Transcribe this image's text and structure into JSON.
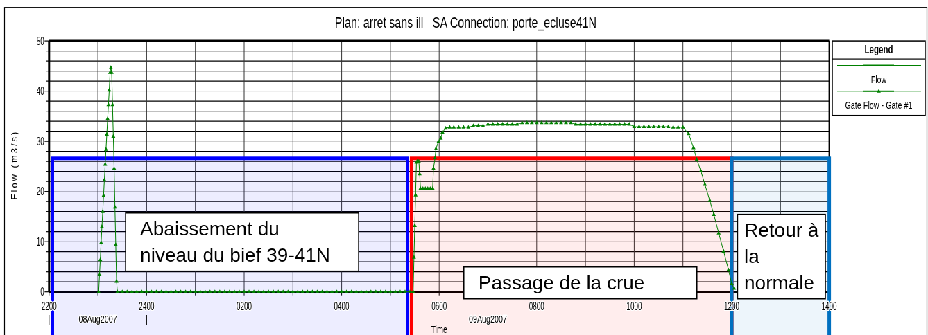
{
  "chart_data": {
    "type": "line",
    "title": "Plan: arret sans ill   SA Connection: porte_ecluse41N",
    "xlabel": "Time",
    "ylabel": "Flow (m3/s)",
    "legend_title": "Legend",
    "legend": "top right",
    "grid": true,
    "xlim": [
      "2007-08-08T22:00",
      "2007-08-09T14:00"
    ],
    "xticks": [
      {
        "value": "2007-08-08T22:00",
        "label": "2200"
      },
      {
        "value": "2007-08-08T23:00",
        "label": null
      },
      {
        "value": "2007-08-09T00:00",
        "label": "2400"
      },
      {
        "value": "2007-08-09T01:00",
        "label": null
      },
      {
        "value": "2007-08-09T02:00",
        "label": "0200"
      },
      {
        "value": "2007-08-09T03:00",
        "label": null
      },
      {
        "value": "2007-08-09T04:00",
        "label": "0400"
      },
      {
        "value": "2007-08-09T05:00",
        "label": null
      },
      {
        "value": "2007-08-09T06:00",
        "label": "0600"
      },
      {
        "value": "2007-08-09T07:00",
        "label": null
      },
      {
        "value": "2007-08-09T08:00",
        "label": "0800"
      },
      {
        "value": "2007-08-09T09:00",
        "label": null
      },
      {
        "value": "2007-08-09T10:00",
        "label": "1000"
      },
      {
        "value": "2007-08-09T11:00",
        "label": null
      },
      {
        "value": "2007-08-09T12:00",
        "label": "1200"
      },
      {
        "value": "2007-08-09T13:00",
        "label": null
      },
      {
        "value": "2007-08-09T14:00",
        "label": "1400"
      }
    ],
    "x2lim": [
      "2007-08-08T22:00",
      "2007-08-09T14:00"
    ],
    "x2ticks": [
      {
        "value": "2007-08-08T22:00",
        "label": null
      },
      {
        "value": "2007-08-08T23:00",
        "label": "08Aug2007"
      },
      {
        "value": "2007-08-09T00:00",
        "label": null
      },
      {
        "value": "2007-08-09T07:00",
        "label": "09Aug2007"
      }
    ],
    "ylim": [
      0,
      50
    ],
    "yticks": [
      0,
      {
        "value": 2,
        "label": null
      },
      {
        "value": 4,
        "label": null
      },
      {
        "value": 6,
        "label": null
      },
      {
        "value": 8,
        "label": null
      },
      10,
      {
        "value": 12,
        "label": null
      },
      {
        "value": 14,
        "label": null
      },
      {
        "value": 16,
        "label": null
      },
      {
        "value": 18,
        "label": null
      },
      20,
      {
        "value": 22,
        "label": null
      },
      {
        "value": 24,
        "label": null
      },
      {
        "value": 26,
        "label": null
      },
      {
        "value": 28,
        "label": null
      },
      30,
      {
        "value": 32,
        "label": null
      },
      {
        "value": 34,
        "label": null
      },
      {
        "value": 36,
        "label": null
      },
      {
        "value": 38,
        "label": null
      },
      40,
      {
        "value": 42,
        "label": null
      },
      {
        "value": 44,
        "label": null
      },
      {
        "value": 46,
        "label": null
      },
      {
        "value": 48,
        "label": null
      },
      50
    ],
    "x": [
      "2007-08-08T23:01",
      "2007-08-08T23:02",
      "2007-08-08T23:03",
      "2007-08-08T23:04",
      "2007-08-08T23:05",
      "2007-08-08T23:06",
      "2007-08-08T23:07",
      "2007-08-08T23:08",
      "2007-08-08T23:09",
      "2007-08-08T23:10",
      "2007-08-08T23:11",
      "2007-08-08T23:12",
      "2007-08-08T23:13",
      "2007-08-08T23:14",
      "2007-08-08T23:15",
      "2007-08-08T23:16",
      "2007-08-08T23:17",
      "2007-08-08T23:18",
      "2007-08-08T23:19",
      "2007-08-08T23:20",
      "2007-08-08T23:21",
      "2007-08-08T23:22",
      "2007-08-08T23:23",
      "2007-08-08T23:24",
      "2007-08-08T23:30",
      "2007-08-08T23:36",
      "2007-08-08T23:42",
      "2007-08-08T23:48",
      "2007-08-08T23:54",
      "2007-08-09T00:00",
      "2007-08-09T00:06",
      "2007-08-09T00:12",
      "2007-08-09T00:18",
      "2007-08-09T00:24",
      "2007-08-09T00:30",
      "2007-08-09T00:36",
      "2007-08-09T00:42",
      "2007-08-09T00:48",
      "2007-08-09T00:54",
      "2007-08-09T01:00",
      "2007-08-09T01:06",
      "2007-08-09T01:12",
      "2007-08-09T01:18",
      "2007-08-09T01:24",
      "2007-08-09T01:30",
      "2007-08-09T01:36",
      "2007-08-09T01:42",
      "2007-08-09T01:48",
      "2007-08-09T01:54",
      "2007-08-09T02:00",
      "2007-08-09T02:06",
      "2007-08-09T02:12",
      "2007-08-09T02:18",
      "2007-08-09T02:24",
      "2007-08-09T02:30",
      "2007-08-09T02:36",
      "2007-08-09T02:42",
      "2007-08-09T02:48",
      "2007-08-09T02:54",
      "2007-08-09T03:00",
      "2007-08-09T03:06",
      "2007-08-09T03:12",
      "2007-08-09T03:18",
      "2007-08-09T03:24",
      "2007-08-09T03:30",
      "2007-08-09T03:36",
      "2007-08-09T03:42",
      "2007-08-09T03:48",
      "2007-08-09T03:54",
      "2007-08-09T04:00",
      "2007-08-09T04:06",
      "2007-08-09T04:12",
      "2007-08-09T04:18",
      "2007-08-09T04:24",
      "2007-08-09T04:30",
      "2007-08-09T04:36",
      "2007-08-09T04:42",
      "2007-08-09T04:48",
      "2007-08-09T04:54",
      "2007-08-09T05:00",
      "2007-08-09T05:06",
      "2007-08-09T05:12",
      "2007-08-09T05:18",
      "2007-08-09T05:24",
      "2007-08-09T05:28",
      "2007-08-09T05:29",
      "2007-08-09T05:30",
      "2007-08-09T05:31",
      "2007-08-09T05:32",
      "2007-08-09T05:33",
      "2007-08-09T05:35",
      "2007-08-09T05:36",
      "2007-08-09T05:37",
      "2007-08-09T05:40",
      "2007-08-09T05:43",
      "2007-08-09T05:46",
      "2007-08-09T05:49",
      "2007-08-09T05:52",
      "2007-08-09T05:53",
      "2007-08-09T05:55",
      "2007-08-09T05:56",
      "2007-08-09T05:59",
      "2007-08-09T06:02",
      "2007-08-09T06:04",
      "2007-08-09T06:08",
      "2007-08-09T06:13",
      "2007-08-09T06:18",
      "2007-08-09T06:24",
      "2007-08-09T06:30",
      "2007-08-09T06:36",
      "2007-08-09T06:42",
      "2007-08-09T06:48",
      "2007-08-09T06:54",
      "2007-08-09T07:00",
      "2007-08-09T07:06",
      "2007-08-09T07:12",
      "2007-08-09T07:18",
      "2007-08-09T07:24",
      "2007-08-09T07:30",
      "2007-08-09T07:36",
      "2007-08-09T07:42",
      "2007-08-09T07:48",
      "2007-08-09T07:54",
      "2007-08-09T08:00",
      "2007-08-09T08:06",
      "2007-08-09T08:12",
      "2007-08-09T08:18",
      "2007-08-09T08:24",
      "2007-08-09T08:30",
      "2007-08-09T08:36",
      "2007-08-09T08:42",
      "2007-08-09T08:48",
      "2007-08-09T08:54",
      "2007-08-09T09:00",
      "2007-08-09T09:06",
      "2007-08-09T09:12",
      "2007-08-09T09:18",
      "2007-08-09T09:24",
      "2007-08-09T09:30",
      "2007-08-09T09:36",
      "2007-08-09T09:42",
      "2007-08-09T09:48",
      "2007-08-09T09:54",
      "2007-08-09T10:00",
      "2007-08-09T10:06",
      "2007-08-09T10:12",
      "2007-08-09T10:18",
      "2007-08-09T10:24",
      "2007-08-09T10:30",
      "2007-08-09T10:36",
      "2007-08-09T10:42",
      "2007-08-09T10:48",
      "2007-08-09T10:54",
      "2007-08-09T11:00",
      "2007-08-09T11:07",
      "2007-08-09T11:13",
      "2007-08-09T11:17",
      "2007-08-09T11:22",
      "2007-08-09T11:27",
      "2007-08-09T11:33",
      "2007-08-09T11:38",
      "2007-08-09T11:44",
      "2007-08-09T11:50",
      "2007-08-09T11:56",
      "2007-08-09T12:00",
      "2007-08-09T12:03"
    ],
    "series": [
      {
        "name": "Flow",
        "color": "#008000",
        "marker": "none",
        "values": [
          null,
          null,
          null,
          null,
          null,
          null,
          null,
          null,
          null,
          null,
          null,
          null,
          null,
          null,
          null,
          null,
          null,
          null,
          null,
          null,
          null,
          null,
          null,
          null,
          null,
          null,
          null,
          null,
          null,
          null,
          null,
          null,
          null,
          null,
          null,
          null,
          null,
          null,
          null,
          null,
          null,
          null,
          null,
          null,
          null,
          null,
          null,
          null,
          null,
          null,
          null,
          null,
          null,
          null,
          null,
          null,
          null,
          null,
          null,
          null,
          null,
          null,
          null,
          null,
          null,
          null,
          null,
          null,
          null,
          null,
          null,
          null,
          null,
          null,
          null,
          null,
          null,
          null,
          null,
          null,
          null,
          null,
          null,
          null,
          null,
          null,
          null,
          null,
          null,
          null,
          null,
          null,
          null,
          null,
          null,
          null,
          null,
          null,
          null,
          null,
          null,
          null,
          null,
          null,
          null,
          null,
          null,
          null,
          null,
          null,
          null,
          null,
          null,
          null,
          null,
          null,
          null,
          null,
          null,
          null,
          null,
          null,
          null,
          null,
          null,
          null,
          null,
          null,
          null,
          null,
          null,
          null,
          null,
          null,
          null,
          null,
          null,
          null,
          null,
          null,
          null,
          null,
          null,
          null,
          null,
          null,
          null,
          null,
          null,
          null,
          null,
          null,
          null,
          null,
          null,
          null,
          null,
          null,
          null,
          null,
          null,
          null,
          null,
          null,
          null,
          null
        ]
      },
      {
        "name": "Gate Flow - Gate #1",
        "color": "#008000",
        "marker": "triangle",
        "values": [
          0,
          3.4,
          6.4,
          9.8,
          13,
          16,
          19.2,
          22.3,
          25.4,
          28.4,
          31.4,
          34.5,
          37.3,
          40.2,
          43.7,
          44.7,
          43.7,
          37.3,
          31,
          24.6,
          16.9,
          9.4,
          2.1,
          0,
          0,
          0,
          0,
          0,
          0,
          0,
          0,
          0,
          0,
          0,
          0,
          0,
          0,
          0,
          0,
          0,
          0,
          0,
          0,
          0,
          0,
          0,
          0,
          0,
          0,
          0,
          0,
          0,
          0,
          0,
          0,
          0,
          0,
          0,
          0,
          0,
          0,
          0,
          0,
          0,
          0,
          0,
          0,
          0,
          0,
          0,
          0,
          0,
          0,
          0,
          0,
          0,
          0,
          0,
          0,
          0,
          0,
          0,
          0,
          0,
          0,
          6.9,
          13.2,
          19.3,
          25.8,
          26,
          26,
          23.5,
          20.6,
          20.6,
          20.6,
          20.6,
          20.6,
          20.6,
          24.6,
          26.7,
          28.5,
          29.9,
          30.6,
          31.8,
          32.6,
          32.8,
          32.8,
          32.8,
          32.8,
          32.8,
          33.1,
          33.1,
          33.1,
          33.4,
          33.4,
          33.4,
          33.4,
          33.4,
          33.4,
          33.4,
          33.7,
          33.7,
          33.7,
          33.7,
          33.7,
          33.7,
          33.7,
          33.7,
          33.7,
          33.7,
          33.7,
          33.4,
          33.4,
          33.4,
          33.4,
          33.4,
          33.4,
          33.4,
          33.4,
          33.4,
          33.4,
          33.4,
          33.4,
          32.9,
          32.9,
          32.9,
          32.9,
          32.9,
          32.9,
          32.9,
          32.9,
          32.8,
          32.8,
          32.8,
          31.5,
          28.7,
          26.4,
          24.1,
          21.4,
          18.2,
          15.4,
          11.7,
          8.1,
          4.4,
          1.6,
          0.7
        ]
      }
    ],
    "bands": [
      {
        "axis": "x",
        "from": "2007-08-08T22:04",
        "to": "2007-08-09T05:21",
        "label": "Abaissement du niveau du bief 39-41N",
        "color": "#0000ff"
      },
      {
        "axis": "x",
        "from": "2007-08-09T05:26",
        "to": "2007-08-09T12:00",
        "label": "Passage de la crue",
        "color": "#ff0000"
      },
      {
        "axis": "x",
        "from": "2007-08-09T12:00",
        "to": "2007-08-09T14:00",
        "label": "Retour à la normale",
        "color": "#0070c0"
      }
    ]
  }
}
